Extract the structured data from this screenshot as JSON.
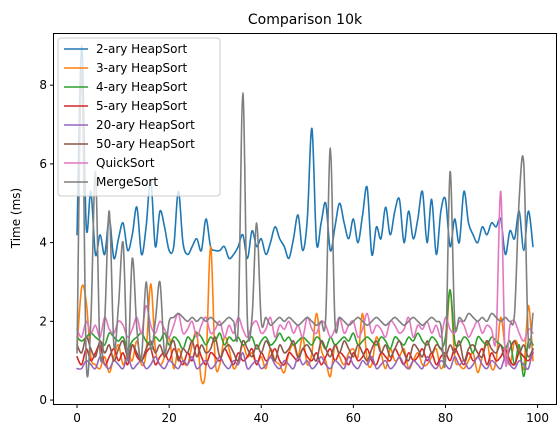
{
  "chart_data": {
    "type": "line",
    "title": "Comparison 10k",
    "xlabel": "",
    "ylabel": "Time (ms)",
    "xlim": [
      -5,
      104
    ],
    "ylim": [
      -0.1,
      9.3
    ],
    "xticks": [
      0,
      20,
      40,
      60,
      80,
      100
    ],
    "yticks": [
      0,
      2,
      4,
      6,
      8
    ],
    "legend_position": "top-left",
    "grid": false,
    "series": [
      {
        "name": "2-ary HeapSort",
        "color": "#1f77b4",
        "values": [
          4.2,
          9.0,
          4.4,
          5.3,
          3.7,
          4.2,
          3.7,
          4.6,
          3.6,
          4.1,
          4.5,
          3.8,
          4.2,
          4.9,
          3.7,
          4.4,
          5.6,
          3.9,
          4.8,
          4.4,
          3.8,
          3.9,
          5.3,
          4.0,
          3.7,
          3.9,
          4.1,
          3.8,
          4.6,
          3.9,
          3.8,
          3.8,
          3.9,
          3.6,
          3.7,
          3.9,
          4.2,
          3.6,
          4.3,
          3.9,
          4.1,
          3.7,
          4.0,
          4.4,
          4.1,
          3.9,
          3.6,
          4.1,
          4.7,
          3.8,
          4.6,
          6.9,
          4.0,
          4.5,
          5.0,
          3.8,
          4.4,
          5.0,
          4.5,
          4.1,
          4.6,
          4.0,
          4.7,
          5.4,
          3.7,
          4.4,
          4.1,
          4.9,
          4.2,
          4.8,
          5.1,
          4.0,
          4.8,
          4.1,
          4.6,
          5.3,
          4.0,
          5.1,
          3.7,
          4.8,
          5.1,
          3.9,
          4.6,
          4.0,
          5.3,
          4.5,
          4.2,
          4.0,
          4.4,
          4.2,
          4.5,
          4.4,
          4.6,
          3.7,
          4.3,
          4.1,
          4.8,
          3.8,
          4.8,
          3.9
        ]
      },
      {
        "name": "3-ary HeapSort",
        "color": "#ff7f0e",
        "values": [
          1.3,
          2.85,
          2.5,
          1.1,
          0.9,
          0.8,
          1.1,
          0.7,
          1.1,
          1.4,
          0.9,
          1.2,
          1.0,
          1.5,
          0.9,
          1.2,
          2.95,
          1.3,
          0.9,
          1.1,
          1.6,
          0.8,
          1.3,
          1.0,
          0.9,
          1.4,
          1.7,
          0.5,
          0.9,
          3.9,
          1.0,
          0.9,
          1.6,
          1.3,
          0.8,
          1.0,
          1.4,
          1.1,
          1.2,
          0.9,
          1.1,
          0.8,
          1.3,
          1.0,
          0.9,
          0.7,
          1.2,
          1.4,
          1.1,
          1.6,
          0.9,
          1.2,
          2.2,
          1.3,
          1.0,
          0.6,
          1.4,
          1.1,
          0.9,
          1.2,
          1.3,
          1.1,
          2.2,
          1.0,
          0.9,
          1.6,
          1.2,
          0.8,
          1.3,
          1.0,
          1.1,
          1.3,
          0.8,
          1.0,
          1.2,
          0.9,
          0.9,
          1.1,
          1.3,
          0.8,
          1.2,
          2.8,
          1.1,
          0.9,
          0.8,
          1.0,
          1.2,
          0.7,
          1.1,
          1.5,
          0.8,
          1.0,
          2.1,
          1.3,
          0.9,
          1.5,
          1.3,
          0.8,
          2.4,
          1.0
        ]
      },
      {
        "name": "4-ary HeapSort",
        "color": "#2ca02c",
        "values": [
          1.6,
          1.5,
          1.6,
          1.7,
          1.6,
          1.5,
          1.4,
          1.7,
          1.6,
          1.5,
          1.6,
          1.3,
          1.5,
          1.6,
          1.7,
          1.5,
          1.4,
          1.6,
          1.5,
          1.7,
          1.4,
          1.6,
          1.5,
          1.3,
          1.6,
          1.5,
          1.7,
          1.6,
          1.4,
          1.6,
          1.5,
          1.7,
          1.4,
          1.6,
          1.5,
          1.6,
          1.4,
          1.5,
          1.6,
          1.3,
          1.5,
          1.6,
          1.4,
          1.5,
          1.7,
          1.5,
          1.6,
          1.4,
          1.5,
          1.6,
          1.5,
          1.4,
          1.6,
          1.5,
          1.3,
          1.6,
          1.4,
          1.5,
          1.6,
          1.5,
          1.7,
          1.4,
          1.5,
          1.6,
          1.5,
          1.4,
          1.6,
          1.5,
          1.3,
          1.6,
          1.5,
          1.4,
          1.6,
          1.5,
          1.7,
          1.5,
          1.4,
          1.6,
          1.5,
          1.3,
          1.6,
          2.8,
          1.5,
          1.4,
          1.6,
          1.5,
          1.2,
          1.6,
          1.5,
          1.4,
          1.6,
          1.5,
          1.4,
          1.3,
          1.5,
          0.9,
          1.4,
          0.6,
          1.5,
          1.4
        ]
      },
      {
        "name": "5-ary HeapSort",
        "color": "#d62728",
        "values": [
          1.1,
          0.9,
          1.3,
          1.0,
          1.2,
          1.4,
          0.9,
          1.1,
          1.3,
          1.0,
          1.2,
          0.9,
          1.4,
          1.1,
          1.0,
          1.2,
          1.3,
          0.9,
          1.1,
          1.2,
          1.0,
          1.3,
          1.1,
          0.9,
          1.2,
          1.0,
          1.4,
          1.1,
          0.9,
          1.2,
          1.1,
          1.0,
          1.3,
          1.1,
          0.9,
          1.2,
          1.0,
          1.1,
          1.3,
          0.9,
          1.2,
          1.0,
          1.1,
          1.3,
          1.0,
          0.9,
          1.2,
          1.1,
          1.0,
          1.3,
          1.1,
          1.0,
          1.2,
          0.9,
          1.1,
          1.3,
          1.0,
          1.2,
          1.1,
          0.9,
          1.2,
          1.0,
          1.1,
          1.3,
          1.0,
          0.9,
          1.2,
          1.1,
          1.0,
          1.3,
          1.1,
          0.9,
          1.2,
          1.0,
          1.1,
          1.3,
          1.0,
          1.2,
          0.9,
          1.1,
          1.2,
          1.0,
          1.3,
          1.1,
          0.9,
          1.2,
          1.0,
          1.1,
          1.3,
          0.9,
          1.2,
          1.0,
          1.1,
          1.3,
          1.0,
          0.9,
          1.2,
          1.1,
          1.0,
          1.2
        ]
      },
      {
        "name": "20-ary HeapSort",
        "color": "#9467bd",
        "values": [
          0.8,
          0.8,
          1.0,
          0.9,
          0.8,
          1.1,
          0.9,
          0.8,
          1.0,
          0.9,
          0.8,
          1.1,
          0.8,
          0.9,
          1.0,
          0.8,
          0.9,
          1.1,
          0.9,
          0.8,
          1.0,
          0.9,
          0.8,
          1.0,
          0.9,
          1.1,
          0.8,
          0.9,
          1.0,
          0.8,
          0.9,
          1.1,
          0.9,
          0.8,
          1.0,
          0.9,
          1.2,
          0.8,
          0.9,
          1.0,
          0.8,
          0.9,
          1.1,
          0.9,
          0.8,
          1.0,
          0.9,
          0.8,
          1.1,
          0.9,
          1.0,
          0.8,
          0.9,
          1.1,
          0.9,
          0.8,
          1.0,
          0.9,
          0.8,
          1.1,
          0.9,
          0.8,
          1.0,
          0.9,
          1.1,
          0.8,
          0.9,
          1.0,
          0.8,
          0.9,
          1.1,
          0.9,
          0.8,
          1.0,
          0.9,
          0.8,
          1.1,
          0.9,
          0.8,
          1.0,
          0.9,
          0.8,
          1.1,
          0.9,
          1.0,
          0.8,
          0.9,
          1.1,
          0.9,
          0.8,
          1.0,
          0.9,
          0.8,
          1.1,
          0.9,
          0.8,
          1.0,
          0.9,
          0.8,
          1.3
        ]
      },
      {
        "name": "50-ary HeapSort",
        "color": "#8c564b",
        "values": [
          1.4,
          1.2,
          1.6,
          1.3,
          1.1,
          1.5,
          1.2,
          1.4,
          1.0,
          1.3,
          1.5,
          1.1,
          1.4,
          1.2,
          1.0,
          1.3,
          1.5,
          1.2,
          1.4,
          1.1,
          1.3,
          1.5,
          1.0,
          1.3,
          1.2,
          1.5,
          1.1,
          1.4,
          1.2,
          1.3,
          1.6,
          1.1,
          1.3,
          1.4,
          1.2,
          1.0,
          1.5,
          1.3,
          1.1,
          1.4,
          1.2,
          1.5,
          1.3,
          1.0,
          1.4,
          1.2,
          1.3,
          1.5,
          1.1,
          1.3,
          1.4,
          1.2,
          1.0,
          1.5,
          1.3,
          1.1,
          1.4,
          1.2,
          1.5,
          1.3,
          1.1,
          1.4,
          1.2,
          1.0,
          1.3,
          1.5,
          1.2,
          1.4,
          1.1,
          1.3,
          1.5,
          1.2,
          1.0,
          1.4,
          1.3,
          1.1,
          1.5,
          1.2,
          1.4,
          1.3,
          1.1,
          1.4,
          1.2,
          1.5,
          1.0,
          1.3,
          1.4,
          1.2,
          1.1,
          1.5,
          1.3,
          1.2,
          1.4,
          1.0,
          1.3,
          1.5,
          1.2,
          1.4,
          1.1,
          1.3
        ]
      },
      {
        "name": "QuickSort",
        "color": "#e377c2",
        "values": [
          1.8,
          1.6,
          2.0,
          1.7,
          1.9,
          1.6,
          2.1,
          1.8,
          1.7,
          2.0,
          1.9,
          1.6,
          1.8,
          2.1,
          1.7,
          2.4,
          1.9,
          1.7,
          2.0,
          1.8,
          1.6,
          1.9,
          2.2,
          1.7,
          1.8,
          2.0,
          1.6,
          1.9,
          2.1,
          1.7,
          1.8,
          2.0,
          1.6,
          1.9,
          1.7,
          2.1,
          1.8,
          1.6,
          1.9,
          2.0,
          1.7,
          1.8,
          2.1,
          1.6,
          1.9,
          1.8,
          2.0,
          1.7,
          1.9,
          1.6,
          2.1,
          1.8,
          1.7,
          2.0,
          1.9,
          1.6,
          1.8,
          2.1,
          1.7,
          1.9,
          2.0,
          1.6,
          1.8,
          2.2,
          1.7,
          1.9,
          1.8,
          1.6,
          2.0,
          1.9,
          1.7,
          1.8,
          2.1,
          1.6,
          1.9,
          1.8,
          2.0,
          1.7,
          1.9,
          1.6,
          2.1,
          1.8,
          1.7,
          2.0,
          1.9,
          1.6,
          1.8,
          2.0,
          1.7,
          1.9,
          1.8,
          1.6,
          5.3,
          1.0,
          1.9,
          2.0,
          1.7,
          1.5,
          1.8,
          1.7
        ]
      },
      {
        "name": "MergeSort",
        "color": "#7f7f7f",
        "values": [
          1.2,
          8.4,
          1.0,
          2.0,
          5.8,
          1.2,
          2.0,
          4.8,
          1.4,
          2.4,
          4.0,
          1.0,
          3.6,
          1.8,
          1.1,
          3.0,
          1.3,
          2.0,
          3.0,
          1.2,
          2.0,
          2.1,
          2.2,
          2.1,
          2.0,
          2.1,
          2.0,
          2.1,
          2.0,
          2.1,
          2.0,
          1.9,
          2.0,
          2.1,
          2.0,
          1.9,
          7.8,
          2.0,
          2.1,
          4.5,
          2.0,
          2.1,
          1.9,
          2.0,
          2.1,
          2.0,
          2.1,
          2.0,
          1.9,
          2.0,
          2.1,
          2.0,
          1.9,
          2.0,
          2.1,
          6.4,
          2.0,
          2.1,
          2.0,
          1.9,
          2.0,
          2.1,
          2.0,
          1.9,
          2.0,
          2.1,
          2.0,
          1.9,
          2.0,
          2.1,
          2.0,
          1.9,
          2.0,
          2.1,
          2.0,
          1.9,
          2.0,
          2.1,
          2.0,
          1.9,
          1.0,
          5.8,
          2.0,
          2.1,
          2.0,
          2.2,
          2.1,
          2.0,
          2.1,
          2.0,
          2.2,
          2.1,
          2.0,
          2.1,
          2.0,
          2.2,
          5.1,
          6.0,
          1.5,
          2.2
        ]
      }
    ]
  }
}
